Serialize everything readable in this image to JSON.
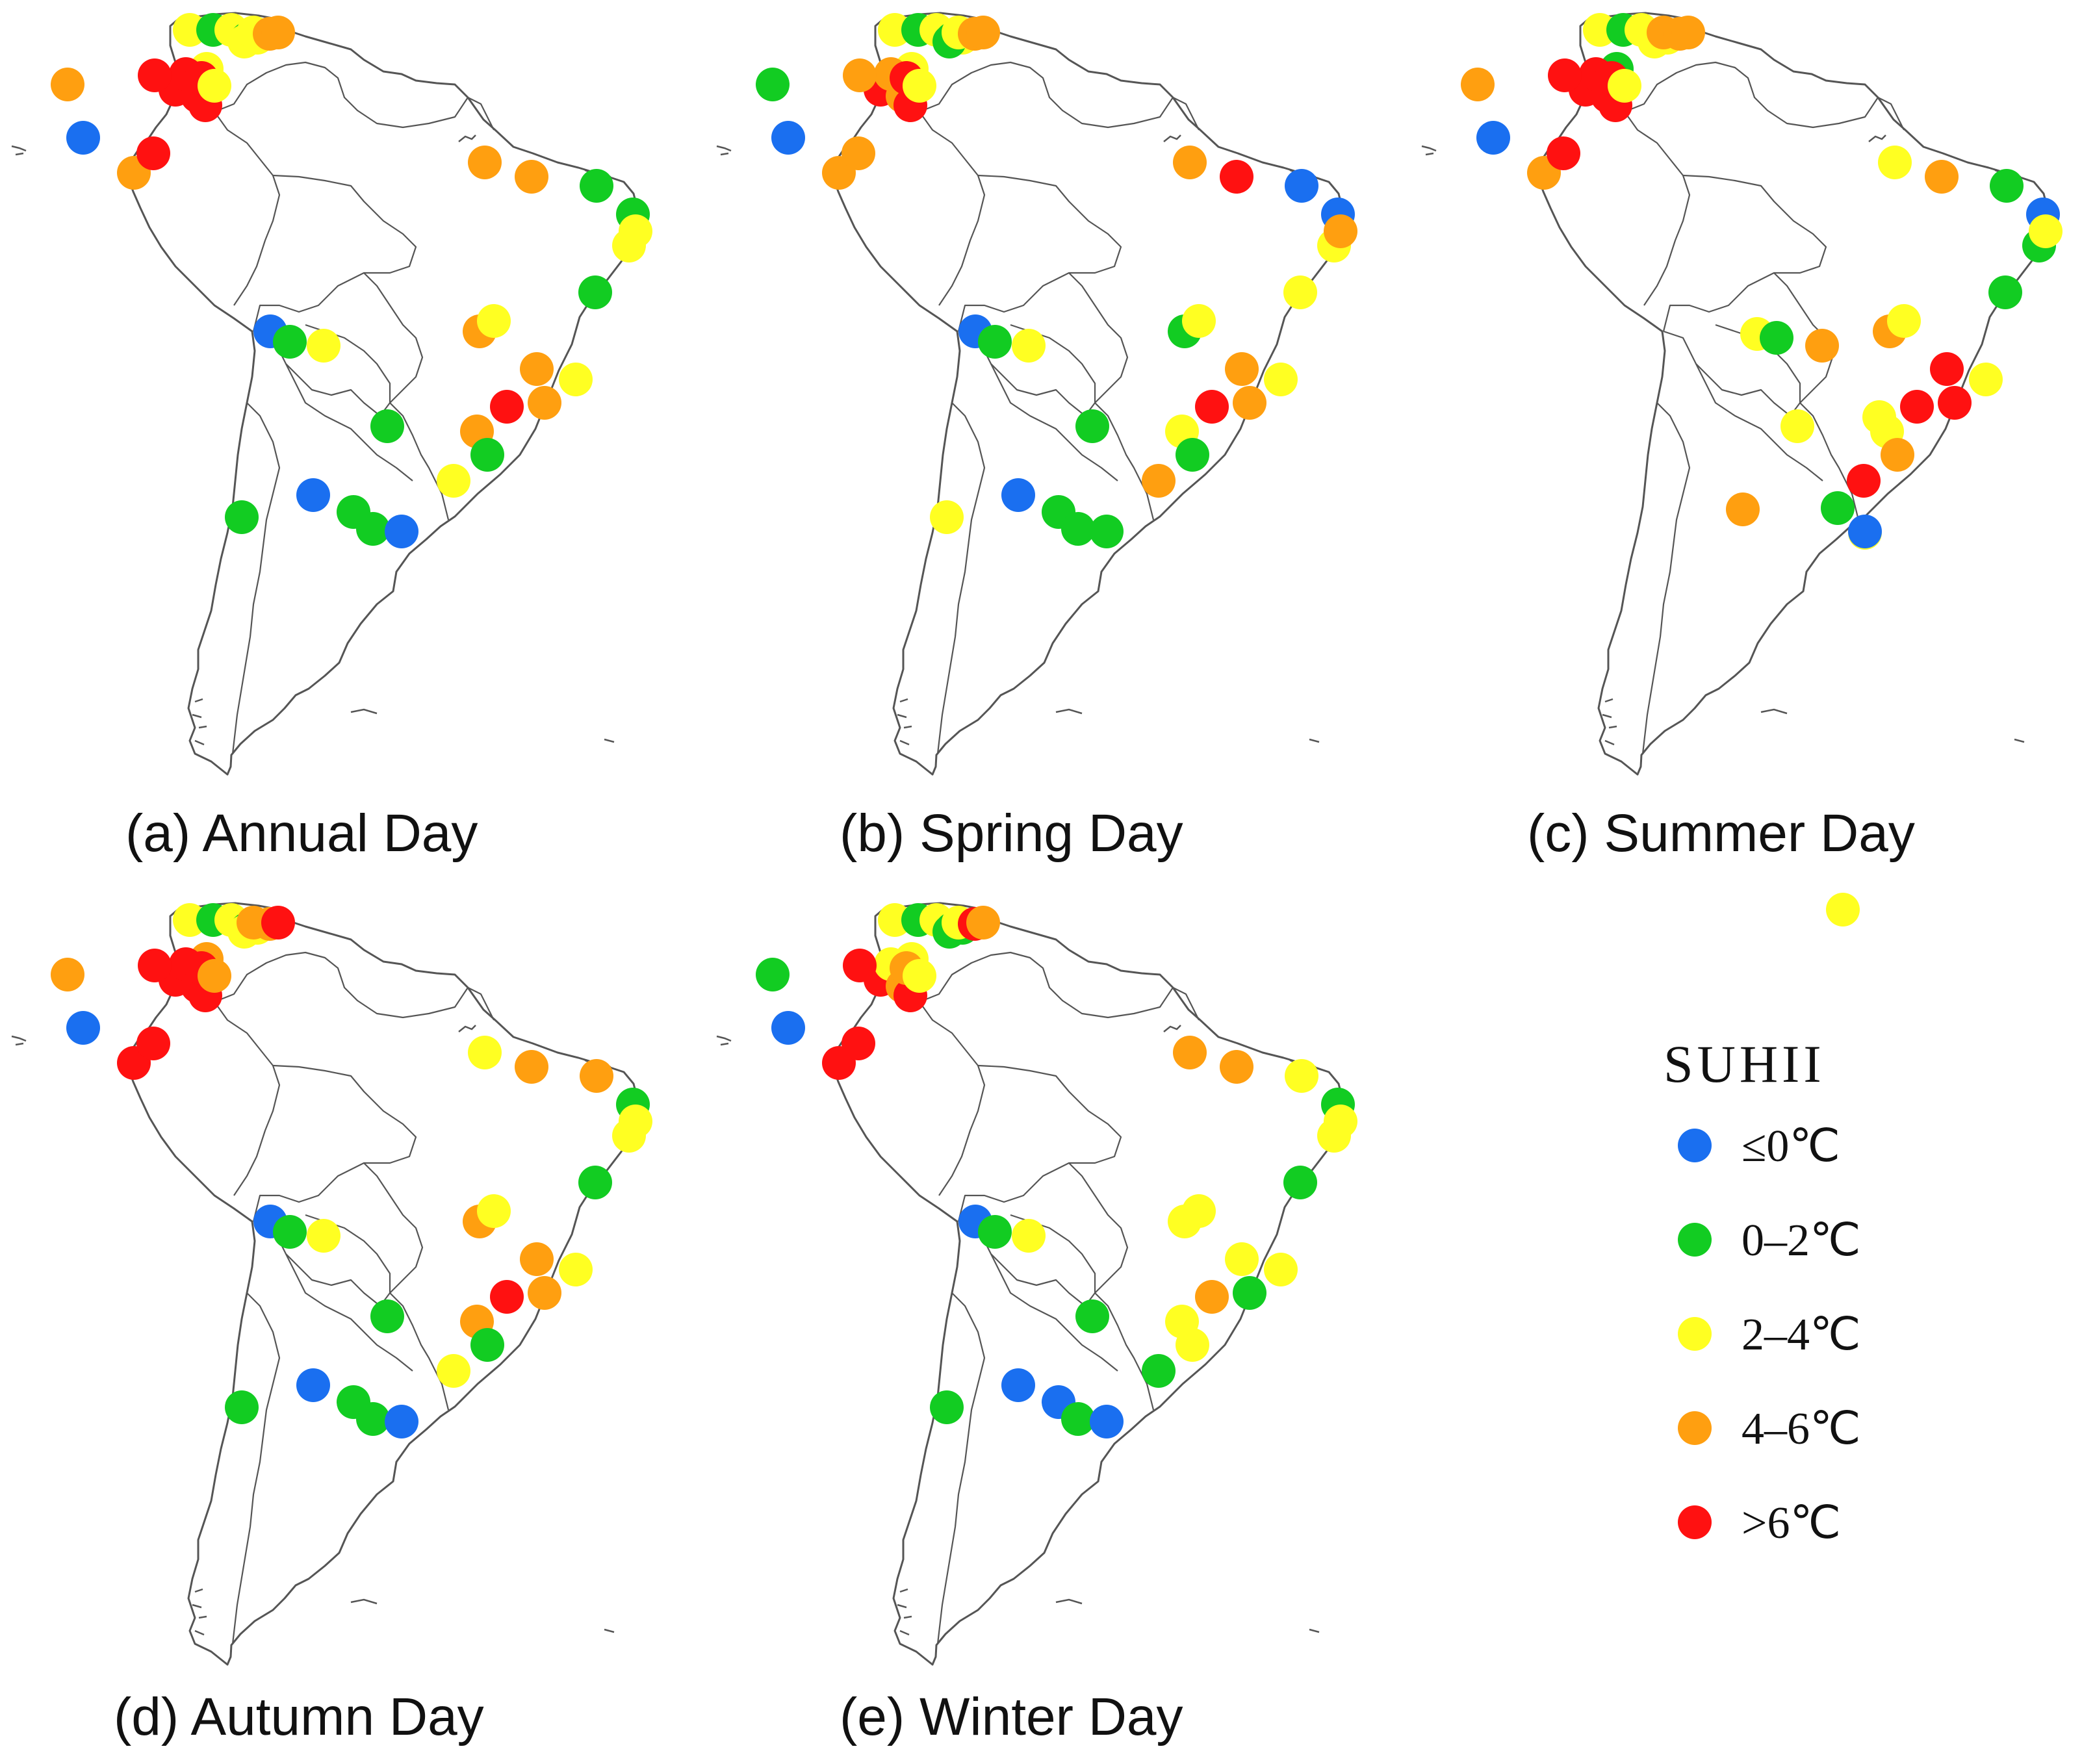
{
  "colors": {
    "le0": "#1a6ff0",
    "c0_2": "#12cc22",
    "c2_4": "#ffff22",
    "c4_6": "#ff9f10",
    "gt6": "#ff1111"
  },
  "panels": [
    {
      "caption": "(a) Annual Day",
      "cities": [
        "gt6",
        "c2_4",
        "c0_2",
        "c2_4",
        "c0_2",
        "c2_4",
        "le0",
        "c4_6",
        "c2_4",
        "c2_4",
        "c2_4",
        "c4_6",
        "c4_6",
        "gt6",
        "gt6",
        "gt6",
        "gt6",
        "c2_4",
        "gt6",
        "c4_6",
        "gt6",
        "c4_6",
        "c4_6",
        "c0_2",
        "c0_2",
        "c2_4",
        "c2_4",
        "c0_2",
        "c4_6",
        "c2_4",
        "c4_6",
        "c2_4",
        "c4_6",
        "gt6",
        "c4_6",
        "c0_2",
        "c2_4",
        "c0_2",
        "le0",
        "c0_2",
        "c2_4",
        "c0_2",
        "le0",
        "c0_2",
        "c0_2",
        "le0"
      ]
    },
    {
      "caption": "(b) Spring Day",
      "cities": [
        "gt6",
        "c2_4",
        "c0_2",
        "c2_4",
        "c0_2",
        "c2_4",
        "le0",
        "c0_2",
        "c0_2",
        "c2_4",
        "c2_4",
        "c4_6",
        "c4_6",
        "c4_6",
        "c4_6",
        "gt6",
        "gt6",
        "c2_4",
        "c4_6",
        "c4_6",
        "c4_6",
        "c4_6",
        "gt6",
        "le0",
        "le0",
        "c2_4",
        "c4_6",
        "c2_4",
        "c0_2",
        "c2_4",
        "c4_6",
        "c2_4",
        "c4_6",
        "gt6",
        "c2_4",
        "c0_2",
        "c4_6",
        "c0_2",
        "le0",
        "c0_2",
        "c2_4",
        "c2_4",
        "le0",
        "c0_2",
        "c0_2",
        "c0_2"
      ]
    },
    {
      "caption": "(c) Summer Day",
      "cities": [
        "gt6",
        "c2_4",
        "c0_2",
        "c2_4",
        "c2_4",
        "c2_4",
        "le0",
        "c4_6",
        "c2_4",
        "c0_2",
        "c4_6",
        "c4_6",
        "c4_6",
        "gt6",
        "gt6",
        "gt6",
        "gt6",
        "c2_4",
        "gt6",
        "c4_6",
        "gt6",
        "c2_4",
        "c4_6",
        "c0_2",
        "le0",
        "c0_2",
        "c2_4",
        "c0_2",
        "c4_6",
        "c2_4",
        "gt6",
        "c2_4",
        "gt6",
        "gt6",
        "c2_4",
        "c4_6",
        "gt6",
        "c2_4",
        "c2_4",
        "c0_2",
        "c4_6",
        "c2_4",
        "c4_6",
        "c0_2",
        "c2_4",
        "c2_4",
        "le0"
      ]
    },
    {
      "caption": "(d) Autumn Day",
      "cities": [
        "gt6",
        "c2_4",
        "c0_2",
        "c2_4",
        "c0_2",
        "c2_4",
        "le0",
        "c4_6",
        "c2_4",
        "c4_6",
        "c4_6",
        "c4_6",
        "gt6",
        "gt6",
        "gt6",
        "gt6",
        "gt6",
        "c4_6",
        "gt6",
        "gt6",
        "gt6",
        "c2_4",
        "c4_6",
        "c4_6",
        "c0_2",
        "c2_4",
        "c2_4",
        "c0_2",
        "c4_6",
        "c2_4",
        "c4_6",
        "c2_4",
        "c4_6",
        "gt6",
        "c4_6",
        "c0_2",
        "c2_4",
        "c0_2",
        "le0",
        "c0_2",
        "c2_4",
        "c0_2",
        "le0",
        "c0_2",
        "c0_2",
        "le0"
      ]
    },
    {
      "caption": "(e) Winter Day",
      "cities": [
        "gt6",
        "c2_4",
        "c0_2",
        "c2_4",
        "c0_2",
        "c0_2",
        "le0",
        "c0_2",
        "c0_2",
        "c2_4",
        "c2_4",
        "gt6",
        "c4_6",
        "c2_4",
        "c4_6",
        "gt6",
        "c4_6",
        "c2_4",
        "gt6",
        "gt6",
        "gt6",
        "c4_6",
        "c4_6",
        "c2_4",
        "c0_2",
        "c2_4",
        "c2_4",
        "c0_2",
        "c2_4",
        "c2_4",
        "c2_4",
        "c2_4",
        "c0_2",
        "c4_6",
        "c2_4",
        "c2_4",
        "c0_2",
        "c0_2",
        "le0",
        "c0_2",
        "c2_4",
        "c0_2",
        "le0",
        "le0",
        "c0_2",
        "le0"
      ]
    }
  ],
  "legend": {
    "title": "SUHII",
    "items": [
      {
        "key": "le0",
        "label": "≤0℃"
      },
      {
        "key": "c0_2",
        "label": "0–2℃"
      },
      {
        "key": "c2_4",
        "label": "2–4℃"
      },
      {
        "key": "c4_6",
        "label": "4–6℃"
      },
      {
        "key": "gt6",
        "label": ">6℃"
      }
    ]
  }
}
